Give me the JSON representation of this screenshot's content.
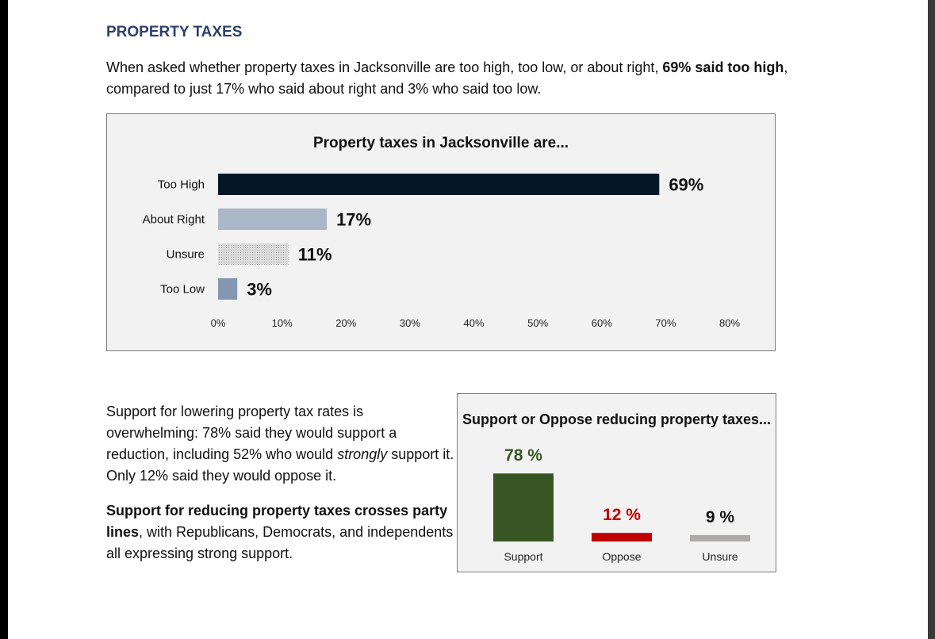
{
  "heading": "PROPERTY TAXES",
  "intro": {
    "part1": "When asked whether property taxes in Jacksonville are too high, too low, or about right, ",
    "bold": "69% said too high",
    "part2": ", compared to just 17% who said about right and 3% who said too low."
  },
  "paragraph2": {
    "part1": "Support for lowering property tax rates is overwhelming: 78% said they would support a reduction, including 52% who would ",
    "italic": "strongly",
    "part2": " support it. Only 12% said they would oppose it."
  },
  "paragraph3": {
    "bold": "Support for reducing property taxes crosses party lines",
    "part2": ", with Republicans, Democrats, and independents all expressing strong support."
  },
  "chart_data": [
    {
      "type": "bar",
      "orientation": "horizontal",
      "title": "Property taxes in Jacksonville are...",
      "categories": [
        "Too High",
        "About Right",
        "Unsure",
        "Too Low"
      ],
      "values": [
        69,
        17,
        11,
        3
      ],
      "value_labels": [
        "69%",
        "17%",
        "11%",
        "3%"
      ],
      "colors": [
        "#041726",
        "#abb6c8",
        "#d9d9d9",
        "#8497b0"
      ],
      "patterned": [
        false,
        false,
        true,
        false
      ],
      "xlim": [
        0,
        80
      ],
      "xticks": [
        0,
        10,
        20,
        30,
        40,
        50,
        60,
        70,
        80
      ],
      "xtick_labels": [
        "0%",
        "10%",
        "20%",
        "30%",
        "40%",
        "50%",
        "60%",
        "70%",
        "80%"
      ],
      "grid": false
    },
    {
      "type": "bar",
      "orientation": "vertical",
      "title": "Support or Oppose reducing property taxes...",
      "categories": [
        "Support",
        "Oppose",
        "Unsure"
      ],
      "values": [
        78,
        12,
        9
      ],
      "value_labels": [
        "78 %",
        "12 %",
        "9 %"
      ],
      "colors": [
        "#375623",
        "#c00000",
        "#aeaaaa"
      ],
      "label_colors": [
        "#375623",
        "#c00000",
        "#111111"
      ],
      "grid": false
    }
  ]
}
